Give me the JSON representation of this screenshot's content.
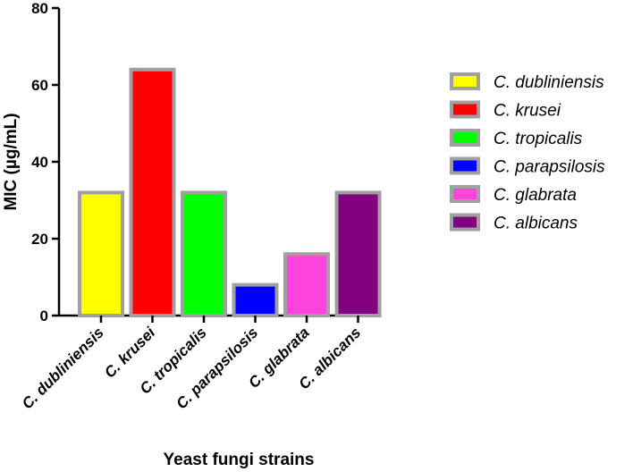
{
  "chart_data": {
    "type": "bar",
    "xlabel": "Yeast fungi strains",
    "ylabel": "MIC (µg/mL)",
    "ylim": [
      0,
      80
    ],
    "yticks": [
      0,
      20,
      40,
      60,
      80
    ],
    "categories": [
      "C. dubliniensis",
      "C. krusei",
      "C. tropicalis",
      "C. parapsilosis",
      "C. glabrata",
      "C. albicans"
    ],
    "values": [
      32,
      64,
      32,
      8,
      16,
      32
    ],
    "colors": [
      "#ffff00",
      "#ff0000",
      "#00ff00",
      "#0000ff",
      "#ff44dd",
      "#800080"
    ],
    "bar_border_color": "#a0a0a0",
    "legend_position": "right",
    "legend": [
      "C. dubliniensis",
      "C. krusei",
      "C. tropicalis",
      "C. parapsilosis",
      "C. glabrata",
      "C. albicans"
    ],
    "grid": false
  }
}
